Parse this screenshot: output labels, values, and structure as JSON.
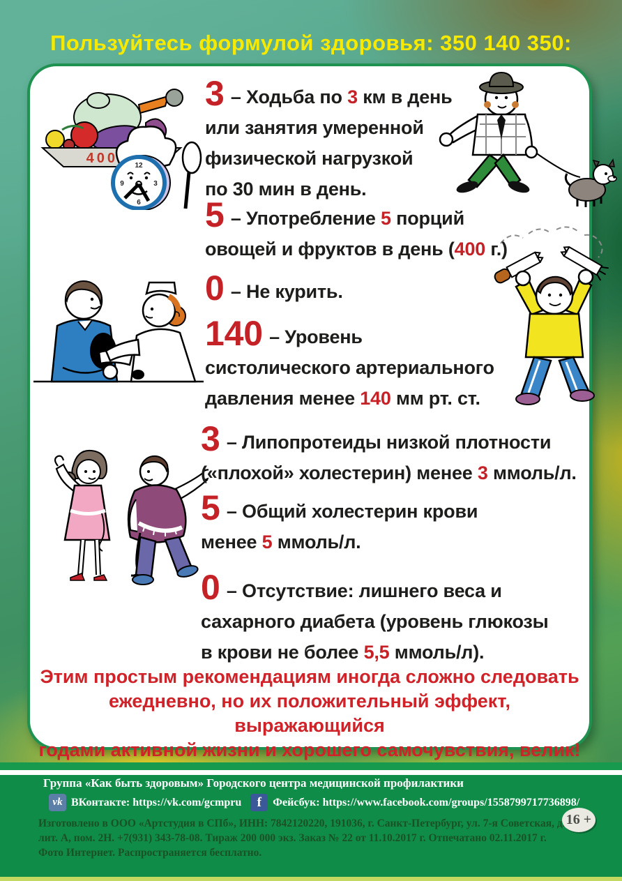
{
  "title": "Пользуйтесь формулой здоровья: 350 140 350:",
  "formula_items": [
    {
      "name": "walking",
      "number": "3",
      "lines": [
        [
          {
            "t": " – Ходьба по "
          },
          {
            "t": "3",
            "r": true
          },
          {
            "t": " км в день"
          }
        ],
        [
          {
            "t": "или занятия умеренной"
          }
        ],
        [
          {
            "t": "физической нагрузкой"
          }
        ],
        [
          {
            "t": "по 30 мин в день."
          }
        ]
      ]
    },
    {
      "name": "fruits-vegetables",
      "number": "5",
      "lines": [
        [
          {
            "t": " – Употребление "
          },
          {
            "t": "5",
            "r": true
          },
          {
            "t": " порций"
          }
        ],
        [
          {
            "t": "овощей и фруктов в день ("
          },
          {
            "t": "400",
            "r": true
          },
          {
            "t": " г.)"
          }
        ]
      ]
    },
    {
      "name": "no-smoking",
      "number": "0",
      "lines": [
        [
          {
            "t": " – Не курить."
          }
        ]
      ]
    },
    {
      "name": "blood-pressure",
      "number": "140",
      "lines": [
        [
          {
            "t": " – Уровень"
          }
        ],
        [
          {
            "t": "систолического артериального"
          }
        ],
        [
          {
            "t": "давления менее "
          },
          {
            "t": "140",
            "r": true
          },
          {
            "t": " мм рт. ст."
          }
        ]
      ]
    },
    {
      "name": "ldl-cholesterol",
      "number": "3",
      "lines": [
        [
          {
            "t": " – Липопротеиды низкой плотности"
          }
        ],
        [
          {
            "t": "(«плохой» холестерин) менее "
          },
          {
            "t": "3",
            "r": true
          },
          {
            "t": " ммоль/л."
          }
        ]
      ]
    },
    {
      "name": "total-cholesterol",
      "number": "5",
      "lines": [
        [
          {
            "t": " – Общий холестерин крови"
          }
        ],
        [
          {
            "t": "менее "
          },
          {
            "t": "5",
            "r": true
          },
          {
            "t": " ммоль/л."
          }
        ]
      ]
    },
    {
      "name": "weight-diabetes",
      "number": "0",
      "lines": [
        [
          {
            "t": " – Отсутствие: лишнего веса и"
          }
        ],
        [
          {
            "t": "сахарного диабета (уровень глюкозы"
          }
        ],
        [
          {
            "t": "в крови не более "
          },
          {
            "t": "5,5",
            "r": true
          },
          {
            "t": " ммоль/л)."
          }
        ]
      ]
    }
  ],
  "conclusion_lines": [
    "Этим простым рекомендациям иногда сложно следовать",
    "ежедневно, но их положительный эффект, выражающийся",
    "годами активной жизни и хорошего самочувствия, велик!"
  ],
  "illustrations": {
    "food_scale_label": "400 г.",
    "clock": {
      "twelve": "12",
      "three": "3",
      "six": "6",
      "nine": "9"
    }
  },
  "footer": {
    "group_line": "Группа «Как быть здоровым» Городского центра медицинской профилактики",
    "vk_icon_text": "vk",
    "vk_label": "ВКонтакте: https://vk.com/gcmpru",
    "fb_icon_text": "f",
    "fb_label": "Фейсбук: https://www.facebook.com/groups/1558799717736898/",
    "imprint_lines": [
      "Изготовлено в ООО «Артстудия в СПб», ИНН: 7842120220, 191036, г. Санкт-Петербург, ул. 7-я Советская, д. 21,",
      "лит. А, пом. 2Н. +7(931) 343-78-08. Тираж 200 000 экз. Заказ № 22 от 11.10.2017 г. Отпечатано 02.11.2017 г.",
      "Фото Интернет. Распространяется бесплатно."
    ],
    "age_badge": "16 +"
  },
  "colors": {
    "accent_red": "#c52228",
    "title_yellow": "#f7ea00",
    "card_border_green": "#1f9150",
    "footer_green": "#0f8c47",
    "bottom_strip": "#c3d95f"
  }
}
